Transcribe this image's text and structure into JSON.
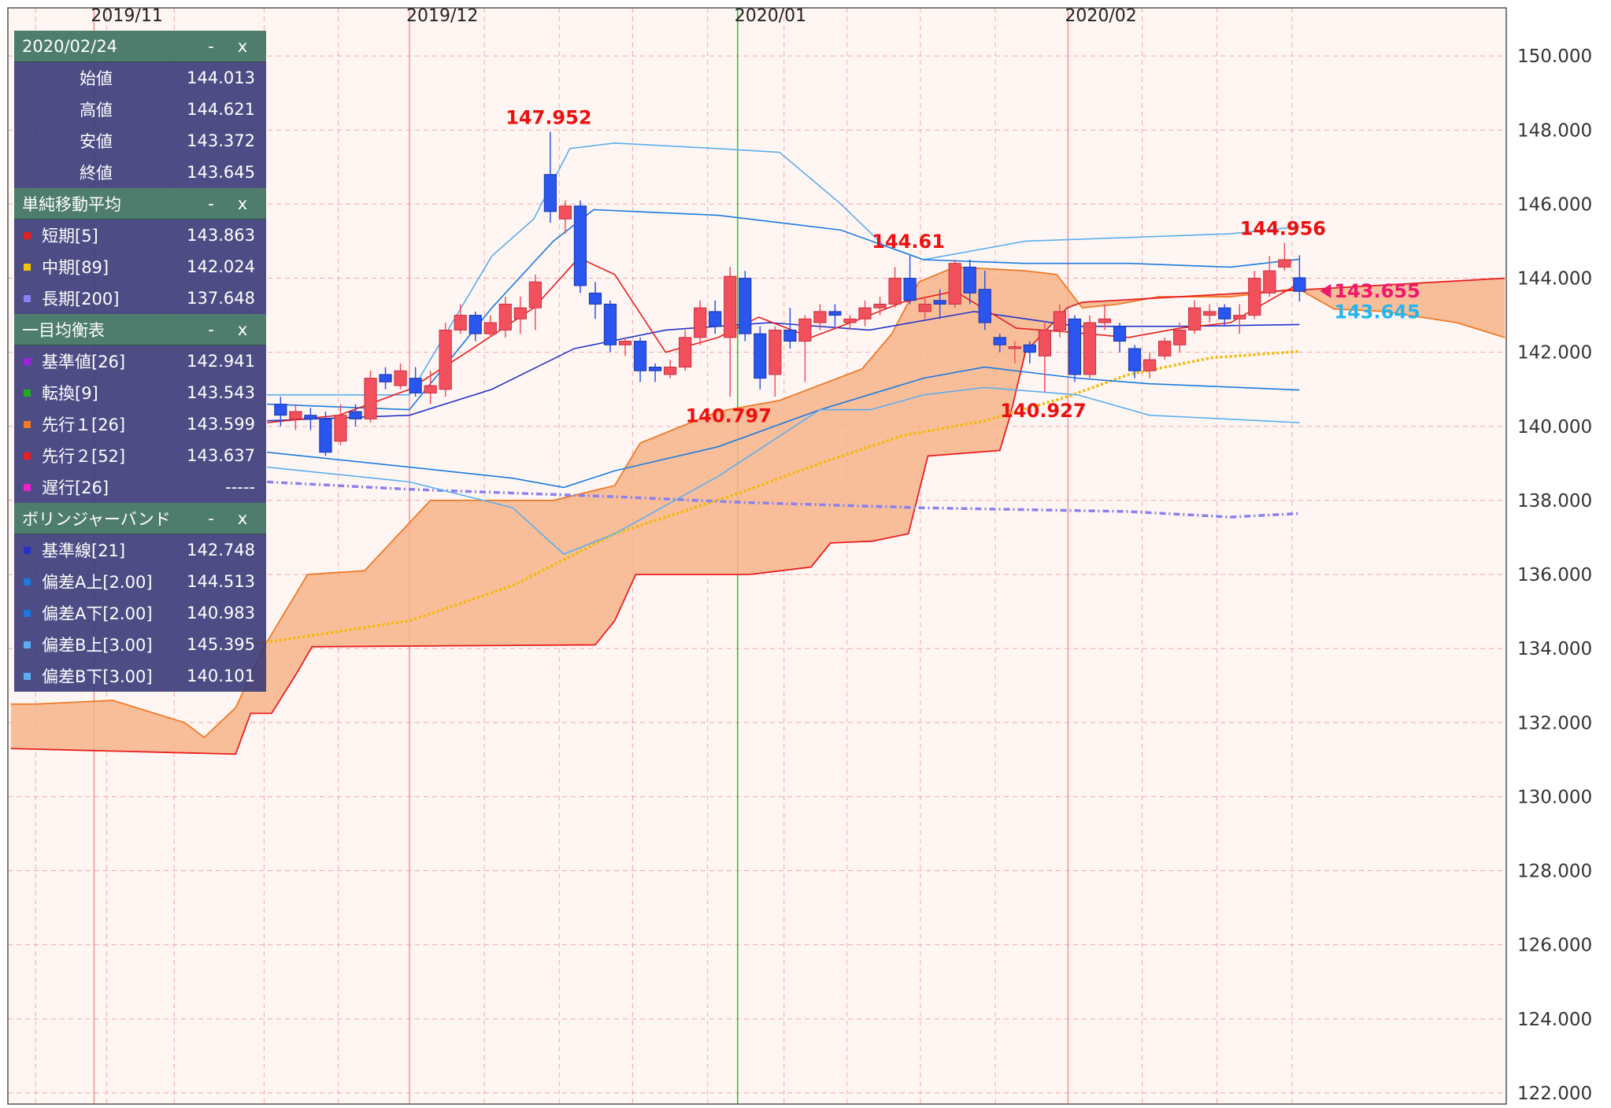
{
  "chart_data": {
    "type": "candlestick",
    "xlim": [
      -0.2,
      99.8
    ],
    "ylim": [
      121.7,
      151.3
    ],
    "xticks": [
      {
        "value": 5.55,
        "label": "2019/11"
      },
      {
        "value": 26.6,
        "label": "2019/12"
      },
      {
        "value": 48.5,
        "label": "2020/01"
      },
      {
        "value": 70.55,
        "label": "2020/02"
      }
    ],
    "minor_xticks": [
      1.65,
      6.4,
      10.9,
      16.9,
      21.85,
      31.6,
      36.6,
      41.5,
      46.5,
      51.6,
      55.8,
      60.7,
      65.7,
      75.5,
      80.5,
      85.5
    ],
    "crosshair_x": 48.5,
    "crosshair_color": "#22cc22",
    "yticks": [
      {
        "value": 122,
        "label": "122.000"
      },
      {
        "value": 124,
        "label": "124.000"
      },
      {
        "value": 126,
        "label": "126.000"
      },
      {
        "value": 128,
        "label": "128.000"
      },
      {
        "value": 130,
        "label": "130.000"
      },
      {
        "value": 132,
        "label": "132.000"
      },
      {
        "value": 134,
        "label": "134.000"
      },
      {
        "value": 136,
        "label": "136.000"
      },
      {
        "value": 138,
        "label": "138.000"
      },
      {
        "value": 140,
        "label": "140.000"
      },
      {
        "value": 142,
        "label": "142.000"
      },
      {
        "value": 144,
        "label": "144.000"
      },
      {
        "value": 146,
        "label": "146.000"
      },
      {
        "value": 148,
        "label": "148.000"
      },
      {
        "value": 150,
        "label": "150.000"
      }
    ],
    "grid": true,
    "up_color": "#f2505c",
    "down_color": "#2a55ee",
    "candles": [
      {
        "x": 18,
        "open": 140.6,
        "high": 140.8,
        "low": 140.0,
        "close": 140.3
      },
      {
        "x": 19,
        "open": 140.2,
        "high": 140.6,
        "low": 139.9,
        "close": 140.4
      },
      {
        "x": 20,
        "open": 140.3,
        "high": 140.5,
        "low": 139.9,
        "close": 140.2
      },
      {
        "x": 21,
        "open": 140.2,
        "high": 140.4,
        "low": 139.2,
        "close": 139.3
      },
      {
        "x": 22,
        "open": 139.6,
        "high": 140.6,
        "low": 139.5,
        "close": 140.3
      },
      {
        "x": 23,
        "open": 140.4,
        "high": 140.6,
        "low": 140.0,
        "close": 140.2
      },
      {
        "x": 24,
        "open": 140.2,
        "high": 141.5,
        "low": 140.1,
        "close": 141.3
      },
      {
        "x": 25,
        "open": 141.4,
        "high": 141.6,
        "low": 141.0,
        "close": 141.2
      },
      {
        "x": 26,
        "open": 141.1,
        "high": 141.7,
        "low": 141.0,
        "close": 141.5
      },
      {
        "x": 27,
        "open": 141.3,
        "high": 141.6,
        "low": 140.8,
        "close": 140.9
      },
      {
        "x": 28,
        "open": 140.9,
        "high": 141.5,
        "low": 140.6,
        "close": 141.1
      },
      {
        "x": 29,
        "open": 141.0,
        "high": 142.8,
        "low": 140.8,
        "close": 142.6
      },
      {
        "x": 30,
        "open": 142.6,
        "high": 143.3,
        "low": 142.5,
        "close": 143.0
      },
      {
        "x": 31,
        "open": 143.0,
        "high": 143.1,
        "low": 142.3,
        "close": 142.5
      },
      {
        "x": 32,
        "open": 142.5,
        "high": 143.0,
        "low": 142.4,
        "close": 142.8
      },
      {
        "x": 33,
        "open": 142.6,
        "high": 143.5,
        "low": 142.4,
        "close": 143.3
      },
      {
        "x": 34,
        "open": 142.9,
        "high": 143.5,
        "low": 142.5,
        "close": 143.2
      },
      {
        "x": 35,
        "open": 143.2,
        "high": 144.1,
        "low": 142.6,
        "close": 143.9
      },
      {
        "x": 36,
        "open": 146.8,
        "high": 147.952,
        "low": 145.5,
        "close": 145.8
      },
      {
        "x": 37,
        "open": 145.6,
        "high": 146.1,
        "low": 145.2,
        "close": 145.95
      },
      {
        "x": 38,
        "open": 145.95,
        "high": 146.1,
        "low": 143.6,
        "close": 143.8
      },
      {
        "x": 39,
        "open": 143.6,
        "high": 143.9,
        "low": 142.9,
        "close": 143.3
      },
      {
        "x": 40,
        "open": 143.3,
        "high": 143.4,
        "low": 142.0,
        "close": 142.2
      },
      {
        "x": 41,
        "open": 142.2,
        "high": 142.4,
        "low": 141.9,
        "close": 142.3
      },
      {
        "x": 42,
        "open": 142.3,
        "high": 142.4,
        "low": 141.2,
        "close": 141.5
      },
      {
        "x": 43,
        "open": 141.6,
        "high": 141.7,
        "low": 141.2,
        "close": 141.5
      },
      {
        "x": 44,
        "open": 141.4,
        "high": 141.8,
        "low": 141.3,
        "close": 141.6
      },
      {
        "x": 45,
        "open": 141.6,
        "high": 142.6,
        "low": 141.5,
        "close": 142.4
      },
      {
        "x": 46,
        "open": 142.4,
        "high": 143.4,
        "low": 142.2,
        "close": 143.2
      },
      {
        "x": 47,
        "open": 143.1,
        "high": 143.4,
        "low": 142.5,
        "close": 142.7
      },
      {
        "x": 48,
        "open": 142.4,
        "high": 144.3,
        "low": 140.797,
        "close": 144.05
      },
      {
        "x": 49,
        "open": 144.0,
        "high": 144.2,
        "low": 142.3,
        "close": 142.5
      },
      {
        "x": 50,
        "open": 142.5,
        "high": 142.7,
        "low": 141.0,
        "close": 141.3
      },
      {
        "x": 51,
        "open": 141.4,
        "high": 142.7,
        "low": 140.8,
        "close": 142.6
      },
      {
        "x": 52,
        "open": 142.6,
        "high": 143.2,
        "low": 142.1,
        "close": 142.3
      },
      {
        "x": 53,
        "open": 142.3,
        "high": 143.0,
        "low": 141.2,
        "close": 142.9
      },
      {
        "x": 54,
        "open": 142.8,
        "high": 143.3,
        "low": 142.6,
        "close": 143.1
      },
      {
        "x": 55,
        "open": 143.1,
        "high": 143.3,
        "low": 142.7,
        "close": 143.0
      },
      {
        "x": 56,
        "open": 142.8,
        "high": 143.0,
        "low": 142.6,
        "close": 142.9
      },
      {
        "x": 57,
        "open": 142.9,
        "high": 143.4,
        "low": 142.7,
        "close": 143.2
      },
      {
        "x": 58,
        "open": 143.2,
        "high": 143.5,
        "low": 143.0,
        "close": 143.3
      },
      {
        "x": 59,
        "open": 143.3,
        "high": 144.3,
        "low": 143.2,
        "close": 144.0
      },
      {
        "x": 60,
        "open": 144.0,
        "high": 144.61,
        "low": 143.3,
        "close": 143.4
      },
      {
        "x": 61,
        "open": 143.1,
        "high": 143.5,
        "low": 142.9,
        "close": 143.3
      },
      {
        "x": 62,
        "open": 143.4,
        "high": 143.7,
        "low": 142.9,
        "close": 143.3
      },
      {
        "x": 63,
        "open": 143.3,
        "high": 144.5,
        "low": 143.2,
        "close": 144.4
      },
      {
        "x": 64,
        "open": 144.3,
        "high": 144.5,
        "low": 143.3,
        "close": 143.6
      },
      {
        "x": 65,
        "open": 143.7,
        "high": 144.2,
        "low": 142.6,
        "close": 142.8
      },
      {
        "x": 66,
        "open": 142.4,
        "high": 142.5,
        "low": 142.0,
        "close": 142.2
      },
      {
        "x": 67,
        "open": 142.1,
        "high": 142.3,
        "low": 141.7,
        "close": 142.15
      },
      {
        "x": 68,
        "open": 142.2,
        "high": 142.3,
        "low": 141.7,
        "close": 142.0
      },
      {
        "x": 69,
        "open": 141.9,
        "high": 142.8,
        "low": 140.927,
        "close": 142.6
      },
      {
        "x": 70,
        "open": 142.6,
        "high": 143.3,
        "low": 142.4,
        "close": 143.1
      },
      {
        "x": 71,
        "open": 142.9,
        "high": 143.0,
        "low": 141.2,
        "close": 141.4
      },
      {
        "x": 72,
        "open": 141.4,
        "high": 143.0,
        "low": 141.3,
        "close": 142.8
      },
      {
        "x": 73,
        "open": 142.8,
        "high": 143.3,
        "low": 142.6,
        "close": 142.9
      },
      {
        "x": 74,
        "open": 142.7,
        "high": 142.8,
        "low": 142.0,
        "close": 142.3
      },
      {
        "x": 75,
        "open": 142.1,
        "high": 142.2,
        "low": 141.3,
        "close": 141.5
      },
      {
        "x": 76,
        "open": 141.5,
        "high": 142.0,
        "low": 141.3,
        "close": 141.8
      },
      {
        "x": 77,
        "open": 141.9,
        "high": 142.4,
        "low": 141.8,
        "close": 142.3
      },
      {
        "x": 78,
        "open": 142.2,
        "high": 142.8,
        "low": 142.0,
        "close": 142.6
      },
      {
        "x": 79,
        "open": 142.6,
        "high": 143.4,
        "low": 142.5,
        "close": 143.2
      },
      {
        "x": 80,
        "open": 143.0,
        "high": 143.3,
        "low": 142.8,
        "close": 143.1
      },
      {
        "x": 81,
        "open": 143.2,
        "high": 143.3,
        "low": 142.7,
        "close": 142.9
      },
      {
        "x": 82,
        "open": 142.9,
        "high": 143.3,
        "low": 142.5,
        "close": 143.0
      },
      {
        "x": 83,
        "open": 143.0,
        "high": 144.2,
        "low": 142.9,
        "close": 144.0
      },
      {
        "x": 84,
        "open": 143.6,
        "high": 144.6,
        "low": 143.5,
        "close": 144.2
      },
      {
        "x": 85,
        "open": 144.3,
        "high": 144.956,
        "low": 144.2,
        "close": 144.5
      },
      {
        "x": 86,
        "open": 144.013,
        "high": 144.621,
        "low": 143.372,
        "close": 143.645
      }
    ],
    "cloud": {
      "fill": "#f7b489",
      "span_a": {
        "color": "#f07a28",
        "x": [
          0,
          1.65,
          6.8,
          11.6,
          12.9,
          15,
          16.9,
          19.8,
          23.6,
          28,
          36.2,
          40.3,
          42,
          47.2,
          51.3,
          56.8,
          58.8,
          60.6,
          63,
          67.7,
          69.8,
          71.5,
          73.9,
          76.6,
          81.4,
          85.9,
          88.3,
          91.7,
          96.5,
          99.7
        ],
        "values": [
          132.5,
          132.5,
          132.6,
          132.0,
          131.6,
          132.4,
          134.05,
          136.0,
          136.1,
          138.0,
          138.0,
          138.4,
          139.55,
          140.4,
          140.7,
          141.55,
          142.5,
          143.9,
          144.3,
          144.2,
          144.1,
          143.2,
          143.3,
          143.5,
          143.5,
          143.72,
          143.17,
          143.1,
          142.8,
          142.4
        ]
      },
      "span_b": {
        "color": "#e82020",
        "x": [
          0,
          15,
          16,
          17.4,
          19.1,
          20.1,
          39,
          40.3,
          41.7,
          49.3,
          53.4,
          54.7,
          57.5,
          59.9,
          61.2,
          66,
          66.7,
          67.7,
          70.5,
          71.5,
          99.7
        ],
        "values": [
          131.3,
          131.15,
          132.25,
          132.25,
          133.35,
          134.05,
          134.1,
          134.75,
          136.0,
          136.0,
          136.2,
          136.85,
          136.9,
          137.1,
          139.2,
          139.35,
          140.3,
          142.0,
          143.2,
          143.35,
          144.0
        ]
      }
    },
    "series": [
      {
        "color": "#f5b800",
        "style": "dotted",
        "x": [
          15.1,
          26.6,
          33.5,
          40.3,
          48.6,
          54,
          59.5,
          65,
          70.5,
          74.6,
          80.1,
          86
        ],
        "values": [
          134.05,
          134.75,
          135.7,
          137.1,
          138.2,
          139.0,
          139.75,
          140.15,
          140.8,
          141.4,
          141.85,
          142.024
        ]
      },
      {
        "color": "#8a80f0",
        "style": "dashed",
        "x": [
          17.1,
          26.6,
          40.3,
          48.6,
          60.9,
          74.6,
          81.4,
          86
        ],
        "values": [
          138.5,
          138.3,
          138.1,
          137.95,
          137.8,
          137.7,
          137.55,
          137.648
        ]
      },
      {
        "color": "#5aaef0",
        "style": "solid",
        "x": [
          17.1,
          26.6,
          32.1,
          34.9,
          37.3,
          40.3,
          47.2,
          51.3,
          55.4,
          58.2,
          60.9,
          67.7,
          74.6,
          81.4,
          86
        ],
        "values": [
          140.85,
          140.85,
          144.6,
          145.6,
          147.5,
          147.65,
          147.5,
          147.4,
          146.0,
          144.9,
          144.5,
          145.0,
          145.1,
          145.2,
          145.395
        ]
      },
      {
        "color": "#1a7ae0",
        "style": "solid",
        "x": [
          17.1,
          26.6,
          32.1,
          36.2,
          38.9,
          47.2,
          55.4,
          60.9,
          67.7,
          74.6,
          81.4,
          86
        ],
        "values": [
          140.6,
          140.45,
          143.2,
          145.0,
          145.85,
          145.7,
          145.3,
          144.5,
          144.4,
          144.4,
          144.3,
          144.513
        ]
      },
      {
        "color": "#2233cc",
        "style": "solid",
        "x": [
          17.1,
          26.6,
          32.1,
          37.6,
          43.7,
          50.6,
          57.3,
          64.3,
          71.2,
          78,
          86
        ],
        "values": [
          140.15,
          140.3,
          141.0,
          142.1,
          142.6,
          142.8,
          142.6,
          143.1,
          142.7,
          142.7,
          142.748
        ]
      },
      {
        "color": "#1a7ae0",
        "style": "solid",
        "x": [
          17.1,
          26.6,
          33.5,
          36.9,
          40.3,
          47.2,
          54,
          60.9,
          65,
          71.2,
          76,
          86
        ],
        "values": [
          139.3,
          138.9,
          138.6,
          138.35,
          138.8,
          139.45,
          140.45,
          141.3,
          141.6,
          141.3,
          141.15,
          140.983
        ]
      },
      {
        "color": "#5aaef0",
        "style": "solid",
        "x": [
          17.1,
          26.6,
          33.5,
          36.9,
          40.3,
          47.2,
          54,
          57.4,
          60.9,
          65,
          71.2,
          76,
          86
        ],
        "values": [
          138.9,
          138.5,
          137.8,
          136.55,
          137.1,
          138.65,
          140.45,
          140.45,
          140.85,
          141.05,
          140.85,
          140.3,
          140.101
        ]
      },
      {
        "color": "#e81e1e",
        "style": "solid",
        "x": [
          17.1,
          21.9,
          26.6,
          30.8,
          34.9,
          37.9,
          40.3,
          43.7,
          47.2,
          49.9,
          53.4,
          57,
          59.5,
          63,
          67.1,
          70.5,
          74.6,
          78,
          81.4,
          86
        ],
        "values": [
          140.1,
          140.3,
          141.0,
          142.1,
          143.2,
          144.55,
          144.1,
          142.0,
          142.4,
          142.95,
          142.4,
          142.95,
          143.35,
          143.65,
          142.65,
          142.55,
          142.4,
          142.65,
          142.8,
          143.863
        ]
      }
    ],
    "annotations": [
      {
        "x": 36,
        "value": 147.952,
        "position": "above"
      },
      {
        "x": 48,
        "value": 140.797,
        "position": "below"
      },
      {
        "x": 60,
        "value": 144.61,
        "position": "above"
      },
      {
        "x": 69,
        "value": 140.927,
        "position": "below"
      },
      {
        "x": 85,
        "value": 144.956,
        "position": "above"
      }
    ],
    "price_labels": [
      {
        "value": 143.655,
        "color": "#f0186e"
      },
      {
        "value": 143.645,
        "color": "#22b6ee"
      }
    ]
  },
  "panel": {
    "sections": [
      {
        "title": "2020/02/24",
        "minimize": "-",
        "close": "x",
        "rows": [
          {
            "label": "始値",
            "value": 144.013
          },
          {
            "label": "高値",
            "value": 144.621
          },
          {
            "label": "安値",
            "value": 143.372
          },
          {
            "label": "終値",
            "value": 143.645
          }
        ]
      },
      {
        "title": "単純移動平均",
        "minimize": "-",
        "close": "x",
        "rows": [
          {
            "label": "短期[5]",
            "value": 143.863,
            "color": "#e81e1e"
          },
          {
            "label": "中期[89]",
            "value": 142.024,
            "color": "#f5c400"
          },
          {
            "label": "長期[200]",
            "value": 137.648,
            "color": "#8a80f0"
          }
        ]
      },
      {
        "title": "一目均衡表",
        "minimize": "-",
        "close": "x",
        "rows": [
          {
            "label": "基準値[26]",
            "value": 142.941,
            "color": "#a020e0"
          },
          {
            "label": "転換[9]",
            "value": 143.543,
            "color": "#22aa22"
          },
          {
            "label": "先行１[26]",
            "value": 143.599,
            "color": "#f07a28"
          },
          {
            "label": "先行２[52]",
            "value": 143.637,
            "color": "#e82020"
          },
          {
            "label": "遅行[26]",
            "value": "-----",
            "color": "#f020d0"
          }
        ]
      },
      {
        "title": "ボリンジャーバンド",
        "minimize": "-",
        "close": "x",
        "rows": [
          {
            "label": "基準線[21]",
            "value": 142.748,
            "color": "#2233cc"
          },
          {
            "label": "偏差A上[2.00]",
            "value": 144.513,
            "color": "#1a7ae0"
          },
          {
            "label": "偏差A下[2.00]",
            "value": 140.983,
            "color": "#1a7ae0"
          },
          {
            "label": "偏差B上[3.00]",
            "value": 145.395,
            "color": "#5aaef0"
          },
          {
            "label": "偏差B下[3.00]",
            "value": 140.101,
            "color": "#5aaef0"
          }
        ]
      }
    ]
  }
}
